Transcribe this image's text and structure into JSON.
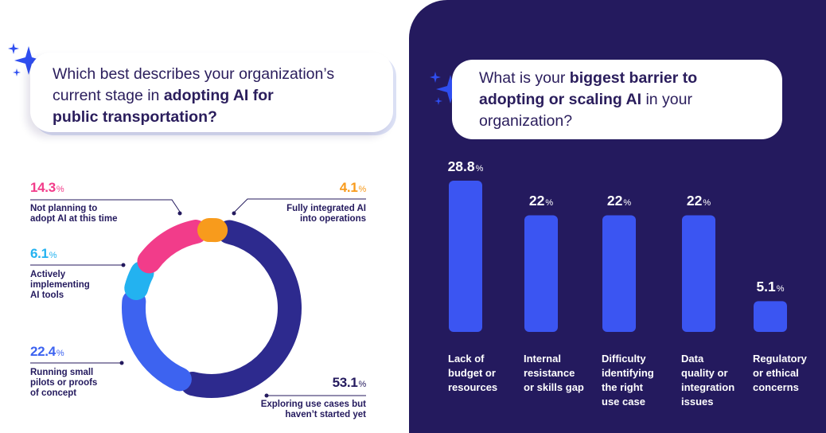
{
  "colors": {
    "navy": "#241a5e",
    "bar_blue": "#3b55f2",
    "pink": "#f23c8a",
    "orange": "#f89b1c",
    "cyan": "#23b2f0",
    "mid_blue": "#3d63f0",
    "dark_blue": "#2d2a8e",
    "sparkle_blue": "#2f4ef0"
  },
  "left_question": {
    "line1": "Which best describes your organization’s",
    "line2_pre": "current stage in ",
    "line2_bold": "adopting AI for",
    "line3_bold": "public transportation?"
  },
  "right_question": {
    "line1_pre": "What is your ",
    "line1_bold": "biggest barrier to",
    "line2_bold": "adopting or scaling AI",
    "line2_post": " in your",
    "line3": "organization?"
  },
  "percent_sign": "%",
  "chart_data": [
    {
      "type": "pie",
      "subtype": "donut",
      "title": "Which best describes your organization’s current stage in adopting AI for public transportation?",
      "slices": [
        {
          "value": "53.1",
          "label_lines": [
            "Exploring use cases but",
            "haven’t started yet"
          ],
          "color": "#2d2a8e"
        },
        {
          "value": "22.4",
          "label_lines": [
            "Running small",
            "pilots or proofs",
            "of concept"
          ],
          "color": "#3d63f0"
        },
        {
          "value": "6.1",
          "label_lines": [
            "Actively",
            "implementing",
            "AI tools"
          ],
          "color": "#23b2f0"
        },
        {
          "value": "14.3",
          "label_lines": [
            "Not planning to",
            "adopt AI at this time"
          ],
          "color": "#f23c8a"
        },
        {
          "value": "4.1",
          "label_lines": [
            "Fully integrated AI",
            "into operations"
          ],
          "color": "#f89b1c"
        }
      ]
    },
    {
      "type": "bar",
      "title": "What is your biggest barrier to adopting or scaling AI in your organization?",
      "ylim": [
        0,
        28.8
      ],
      "bars": [
        {
          "value": "28.8",
          "label_lines": [
            "Lack of",
            "budget or",
            "resources"
          ]
        },
        {
          "value": "22",
          "label_lines": [
            "Internal",
            "resistance",
            "or skills gap"
          ]
        },
        {
          "value": "22",
          "label_lines": [
            "Difficulty",
            "identifying",
            "the right",
            "use case"
          ]
        },
        {
          "value": "22",
          "label_lines": [
            "Data",
            "quality or",
            "integration",
            "issues"
          ]
        },
        {
          "value": "5.1",
          "label_lines": [
            "Regulatory",
            "or ethical",
            "concerns"
          ]
        }
      ]
    }
  ]
}
